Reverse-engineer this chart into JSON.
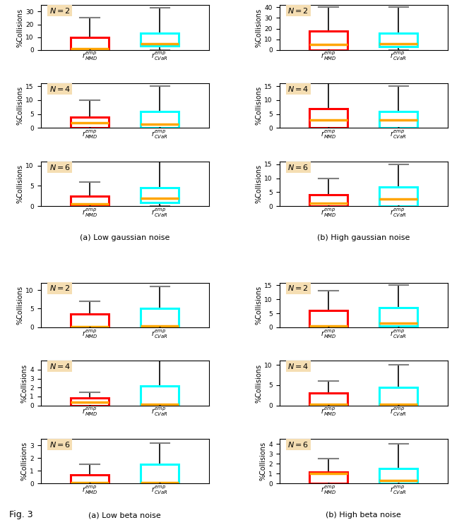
{
  "figure_title": "Fig. 3",
  "sections": [
    {
      "label": "(a) Low gaussian noise",
      "rows": [
        {
          "N": 2,
          "ylim": [
            0,
            35
          ],
          "yticks": [
            0,
            10,
            20,
            30
          ],
          "MMD": {
            "whisker_low": 0,
            "q1": 0,
            "median": 1,
            "q3": 10,
            "whisker_high": 25
          },
          "CVaR": {
            "whisker_low": 0,
            "q1": 3,
            "median": 5,
            "q3": 13,
            "whisker_high": 33
          }
        },
        {
          "N": 4,
          "ylim": [
            0,
            16
          ],
          "yticks": [
            0,
            5,
            10,
            15
          ],
          "MMD": {
            "whisker_low": 0,
            "q1": 0,
            "median": 2,
            "q3": 4,
            "whisker_high": 10
          },
          "CVaR": {
            "whisker_low": 0,
            "q1": 0,
            "median": 1.5,
            "q3": 6,
            "whisker_high": 15
          }
        },
        {
          "N": 6,
          "ylim": [
            0,
            11
          ],
          "yticks": [
            0,
            5,
            10
          ],
          "MMD": {
            "whisker_low": 0,
            "q1": 0,
            "median": 0.5,
            "q3": 2.5,
            "whisker_high": 6
          },
          "CVaR": {
            "whisker_low": 0,
            "q1": 1,
            "median": 2,
            "q3": 4.5,
            "whisker_high": 11
          }
        }
      ]
    },
    {
      "label": "(b) High gaussian noise",
      "rows": [
        {
          "N": 2,
          "ylim": [
            0,
            42
          ],
          "yticks": [
            0,
            10,
            20,
            30,
            40
          ],
          "MMD": {
            "whisker_low": 0,
            "q1": 0,
            "median": 5,
            "q3": 18,
            "whisker_high": 40
          },
          "CVaR": {
            "whisker_low": 0,
            "q1": 3,
            "median": 6,
            "q3": 16,
            "whisker_high": 40
          }
        },
        {
          "N": 4,
          "ylim": [
            0,
            16
          ],
          "yticks": [
            0,
            5,
            10,
            15
          ],
          "MMD": {
            "whisker_low": 0,
            "q1": 0,
            "median": 3,
            "q3": 7,
            "whisker_high": 16
          },
          "CVaR": {
            "whisker_low": 0,
            "q1": 0,
            "median": 3,
            "q3": 6,
            "whisker_high": 15
          }
        },
        {
          "N": 6,
          "ylim": [
            0,
            16
          ],
          "yticks": [
            0,
            5,
            10,
            15
          ],
          "MMD": {
            "whisker_low": 0,
            "q1": 0,
            "median": 1,
            "q3": 4,
            "whisker_high": 10
          },
          "CVaR": {
            "whisker_low": 0,
            "q1": 0,
            "median": 2.5,
            "q3": 7,
            "whisker_high": 15
          }
        }
      ]
    },
    {
      "label": "(a) Low beta noise",
      "rows": [
        {
          "N": 2,
          "ylim": [
            0,
            12
          ],
          "yticks": [
            0,
            5,
            10
          ],
          "MMD": {
            "whisker_low": 0,
            "q1": 0,
            "median": 0.2,
            "q3": 3.5,
            "whisker_high": 7
          },
          "CVaR": {
            "whisker_low": 0,
            "q1": 0,
            "median": 0.3,
            "q3": 5,
            "whisker_high": 11
          }
        },
        {
          "N": 4,
          "ylim": [
            0,
            5
          ],
          "yticks": [
            0,
            1,
            2,
            3,
            4
          ],
          "MMD": {
            "whisker_low": 0,
            "q1": 0,
            "median": 0.4,
            "q3": 0.8,
            "whisker_high": 1.5
          },
          "CVaR": {
            "whisker_low": 0,
            "q1": 0,
            "median": 0.1,
            "q3": 2.2,
            "whisker_high": 5
          }
        },
        {
          "N": 6,
          "ylim": [
            0,
            3.5
          ],
          "yticks": [
            0,
            1,
            2,
            3
          ],
          "MMD": {
            "whisker_low": 0,
            "q1": 0,
            "median": 0.1,
            "q3": 0.7,
            "whisker_high": 1.5
          },
          "CVaR": {
            "whisker_low": 0,
            "q1": 0,
            "median": 0.1,
            "q3": 1.5,
            "whisker_high": 3.2
          }
        }
      ]
    },
    {
      "label": "(b) High beta noise",
      "rows": [
        {
          "N": 2,
          "ylim": [
            0,
            16
          ],
          "yticks": [
            0,
            5,
            10,
            15
          ],
          "MMD": {
            "whisker_low": 0,
            "q1": 0,
            "median": 0.5,
            "q3": 6,
            "whisker_high": 13
          },
          "CVaR": {
            "whisker_low": 0,
            "q1": 0.5,
            "median": 1.5,
            "q3": 7,
            "whisker_high": 15
          }
        },
        {
          "N": 4,
          "ylim": [
            0,
            11
          ],
          "yticks": [
            0,
            5,
            10
          ],
          "MMD": {
            "whisker_low": 0,
            "q1": 0,
            "median": 0.3,
            "q3": 3,
            "whisker_high": 6
          },
          "CVaR": {
            "whisker_low": 0,
            "q1": 0,
            "median": 0.3,
            "q3": 4.5,
            "whisker_high": 10
          }
        },
        {
          "N": 6,
          "ylim": [
            0,
            4.5
          ],
          "yticks": [
            0,
            1,
            2,
            3,
            4
          ],
          "MMD": {
            "whisker_low": 0,
            "q1": 0,
            "median": 1,
            "q3": 1.2,
            "whisker_high": 2.5
          },
          "CVaR": {
            "whisker_low": 0,
            "q1": 0,
            "median": 0.3,
            "q3": 1.5,
            "whisker_high": 4
          }
        }
      ]
    }
  ],
  "mmd_color": "#ff0000",
  "cvar_color": "#00ffff",
  "median_color": "#ffa500",
  "whisker_color": "#000000",
  "cap_color": "#808080",
  "bg_label_color": "#f5deb3",
  "xlabel_mmd": "$r^{emp}_{MMD}$",
  "xlabel_cvar": "$r^{emp}_{CVaR}$",
  "ylabel": "%Collisions"
}
